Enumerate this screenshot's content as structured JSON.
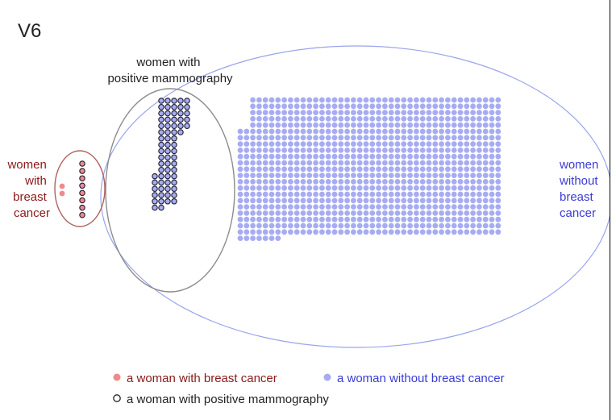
{
  "diagram": {
    "title": "V6",
    "groups": {
      "positive_mammography": {
        "label_lines": [
          "women with",
          "positive mammography"
        ],
        "outline_color": "#8c8c8c"
      },
      "breast_cancer": {
        "label_lines": [
          "women",
          "with",
          "breast",
          "cancer"
        ],
        "outline_color": "#b0625e",
        "text_color": "#8b1a1a"
      },
      "without_breast_cancer": {
        "label_lines": [
          "women",
          "without",
          "breast",
          "cancer"
        ],
        "outline_color": "#9aa4ec",
        "text_color": "#3b3bd6"
      }
    },
    "colors": {
      "cancer_dot": "#f08a8a",
      "no_cancer_dot": "#a7acf2",
      "positive_outline": "#1a1a2e"
    },
    "counts": {
      "cancer_negative": 2,
      "cancer_positive": 8,
      "no_cancer_positive": 69,
      "no_cancer_negative": 921
    },
    "legend": {
      "cancer": "a woman with breast cancer",
      "no_cancer": "a woman without breast cancer",
      "positive": "a woman with positive mammography"
    }
  }
}
